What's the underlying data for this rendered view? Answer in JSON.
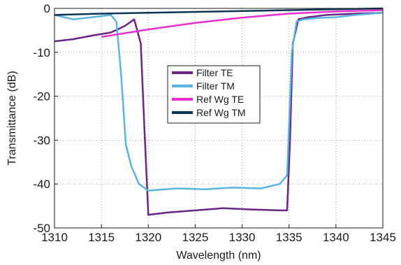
{
  "chart_data": {
    "type": "line",
    "xlabel": "Wavelength (nm)",
    "ylabel": "Transmittance (dB)",
    "xlim": [
      1310,
      1345
    ],
    "ylim": [
      -50,
      0
    ],
    "xticks": [
      1310,
      1315,
      1320,
      1325,
      1330,
      1335,
      1340,
      1345
    ],
    "yticks": [
      0,
      -10,
      -20,
      -30,
      -40,
      -50
    ],
    "grid": "dotted",
    "legend_position": "center",
    "series": [
      {
        "name": "Filter TE",
        "color": "#6a2483",
        "x": [
          1310,
          1312,
          1314,
          1316,
          1317.5,
          1318.5,
          1319.2,
          1319.6,
          1320,
          1322,
          1325,
          1328,
          1331,
          1334,
          1334.8,
          1335.1,
          1335.4,
          1336,
          1337,
          1339,
          1342,
          1345
        ],
        "y": [
          -7.5,
          -7,
          -6.2,
          -5.5,
          -4,
          -2.5,
          -8,
          -28,
          -47,
          -46.5,
          -46,
          -45.5,
          -45.8,
          -46,
          -46,
          -30,
          -8,
          -2.5,
          -2,
          -1.5,
          -1.2,
          -1
        ]
      },
      {
        "name": "Filter TM",
        "color": "#5ab4e1",
        "x": [
          1310,
          1312,
          1314,
          1316,
          1316.6,
          1317.1,
          1317.6,
          1318.2,
          1319,
          1320,
          1323,
          1326,
          1329,
          1332,
          1334,
          1334.8,
          1335.3,
          1335.8,
          1336.5,
          1338,
          1340,
          1342,
          1345
        ],
        "y": [
          -1.5,
          -2.5,
          -2,
          -1.5,
          -3,
          -15,
          -31,
          -36,
          -40,
          -41.5,
          -41,
          -41.2,
          -40.8,
          -41,
          -40,
          -38,
          -10,
          -3,
          -2.5,
          -2.2,
          -2,
          -1.5,
          -1
        ]
      },
      {
        "name": "Ref Wg TE",
        "color": "#e82ed2",
        "x": [
          1315,
          1320,
          1325,
          1330,
          1335,
          1340,
          1345
        ],
        "y": [
          -6.5,
          -4.8,
          -3.3,
          -2.1,
          -1.2,
          -0.7,
          -0.4
        ]
      },
      {
        "name": "Ref Wg TM",
        "color": "#0b3558",
        "x": [
          1310,
          1315,
          1320,
          1325,
          1330,
          1335,
          1340,
          1345
        ],
        "y": [
          -1.5,
          -1.2,
          -1,
          -0.8,
          -0.6,
          -0.4,
          -0.2,
          0
        ]
      }
    ]
  }
}
